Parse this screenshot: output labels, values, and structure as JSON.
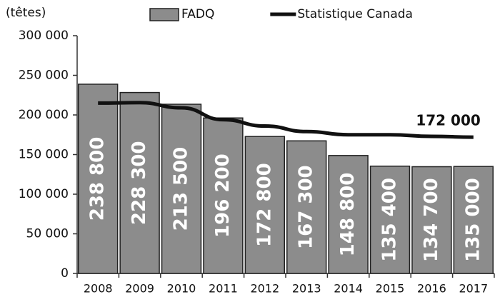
{
  "chart_data": {
    "type": "bar",
    "y_axis_label": "(têtes)",
    "categories": [
      "2008",
      "2009",
      "2010",
      "2011",
      "2012",
      "2013",
      "2014",
      "2015",
      "2016",
      "2017"
    ],
    "series": [
      {
        "name": "FADQ",
        "type": "bar",
        "color": "#8c8c8c",
        "values": [
          238800,
          228300,
          213500,
          196200,
          172800,
          167300,
          148800,
          135400,
          134700,
          135000
        ],
        "value_labels": [
          "238 800",
          "228 300",
          "213 500",
          "196 200",
          "172 800",
          "167 300",
          "148 800",
          "135 400",
          "134 700",
          "135 000"
        ]
      },
      {
        "name": "Statistique Canada",
        "type": "line",
        "color": "#111111",
        "values": [
          215000,
          215500,
          209000,
          194000,
          186000,
          179000,
          175000,
          175000,
          173000,
          172000
        ],
        "value_labels": [
          null,
          null,
          null,
          null,
          null,
          null,
          null,
          null,
          null,
          "172 000"
        ]
      }
    ],
    "ylim": [
      0,
      300000
    ],
    "yticks": [
      0,
      {
        "value": 50000,
        "label": "50 000"
      },
      {
        "value": 100000,
        "label": "100 000"
      },
      {
        "value": 150000,
        "label": "150 000"
      },
      {
        "value": 200000,
        "label": "200 000"
      },
      {
        "value": 250000,
        "label": "250 000"
      },
      {
        "value": 300000,
        "label": "300 000"
      }
    ],
    "legend": "top"
  }
}
